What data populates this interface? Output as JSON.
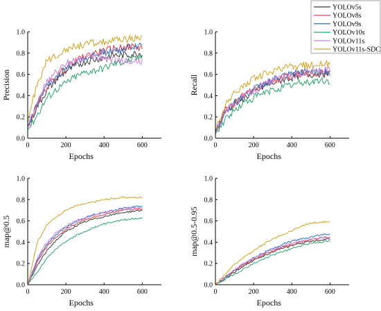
{
  "legend": {
    "placement": "top-right",
    "entries": [
      {
        "name": "YOLOv5s",
        "color": "#3a3a3a"
      },
      {
        "name": "YOLOv8s",
        "color": "#e8393b"
      },
      {
        "name": "YOLOv9s",
        "color": "#2f6fc4"
      },
      {
        "name": "YOLOv10s",
        "color": "#2ca36b"
      },
      {
        "name": "YOLOv11s",
        "color": "#c77ddb"
      },
      {
        "name": "YOLOv11s-SDC",
        "color": "#cfa11c"
      }
    ]
  },
  "chart_data": [
    {
      "type": "line",
      "ylabel": "Precision",
      "xlabel": "Epochs",
      "xlim": [
        0,
        700
      ],
      "ylim": [
        0,
        1.0
      ],
      "xticks": [
        "0",
        "200",
        "400",
        "600"
      ],
      "yticks": [
        "0.0",
        "0.2",
        "0.4",
        "0.6",
        "0.8",
        "1.0"
      ],
      "grid": false,
      "x": [
        0,
        50,
        100,
        150,
        200,
        250,
        300,
        350,
        400,
        450,
        500,
        550,
        600
      ],
      "series": [
        {
          "name": "YOLOv5s",
          "values": [
            0.1,
            0.3,
            0.45,
            0.55,
            0.63,
            0.68,
            0.72,
            0.74,
            0.76,
            0.78,
            0.78,
            0.79,
            0.8
          ]
        },
        {
          "name": "YOLOv8s",
          "values": [
            0.1,
            0.32,
            0.48,
            0.58,
            0.66,
            0.72,
            0.77,
            0.8,
            0.82,
            0.84,
            0.85,
            0.86,
            0.85
          ]
        },
        {
          "name": "YOLOv9s",
          "values": [
            0.1,
            0.33,
            0.48,
            0.58,
            0.65,
            0.72,
            0.75,
            0.78,
            0.81,
            0.82,
            0.84,
            0.86,
            0.88
          ]
        },
        {
          "name": "YOLOv10s",
          "values": [
            0.08,
            0.22,
            0.38,
            0.46,
            0.52,
            0.58,
            0.62,
            0.64,
            0.66,
            0.7,
            0.72,
            0.74,
            0.77
          ]
        },
        {
          "name": "YOLOv11s",
          "values": [
            0.1,
            0.35,
            0.52,
            0.62,
            0.7,
            0.74,
            0.76,
            0.76,
            0.75,
            0.74,
            0.73,
            0.72,
            0.73
          ]
        },
        {
          "name": "YOLOv11s-SDC",
          "values": [
            0.15,
            0.52,
            0.72,
            0.78,
            0.84,
            0.86,
            0.88,
            0.9,
            0.9,
            0.91,
            0.93,
            0.94,
            0.94
          ]
        }
      ]
    },
    {
      "type": "line",
      "ylabel": "Recall",
      "xlabel": "Epochs",
      "xlim": [
        0,
        700
      ],
      "ylim": [
        0,
        1.0
      ],
      "xticks": [
        "0",
        "200",
        "400",
        "600"
      ],
      "yticks": [
        "0.0",
        "0.2",
        "0.4",
        "0.6",
        "0.8",
        "1.0"
      ],
      "grid": false,
      "x": [
        0,
        50,
        100,
        150,
        200,
        250,
        300,
        350,
        400,
        450,
        500,
        550,
        600
      ],
      "series": [
        {
          "name": "YOLOv5s",
          "values": [
            0.05,
            0.25,
            0.32,
            0.38,
            0.43,
            0.48,
            0.52,
            0.55,
            0.57,
            0.59,
            0.6,
            0.61,
            0.6
          ]
        },
        {
          "name": "YOLOv8s",
          "values": [
            0.05,
            0.26,
            0.33,
            0.4,
            0.45,
            0.5,
            0.54,
            0.57,
            0.59,
            0.61,
            0.62,
            0.62,
            0.61
          ]
        },
        {
          "name": "YOLOv9s",
          "values": [
            0.05,
            0.25,
            0.33,
            0.4,
            0.46,
            0.51,
            0.55,
            0.58,
            0.6,
            0.62,
            0.63,
            0.63,
            0.62
          ]
        },
        {
          "name": "YOLOv10s",
          "values": [
            0.04,
            0.18,
            0.26,
            0.33,
            0.38,
            0.42,
            0.45,
            0.48,
            0.5,
            0.52,
            0.53,
            0.54,
            0.53
          ]
        },
        {
          "name": "YOLOv11s",
          "values": [
            0.05,
            0.25,
            0.33,
            0.4,
            0.45,
            0.5,
            0.54,
            0.57,
            0.59,
            0.61,
            0.63,
            0.64,
            0.64
          ]
        },
        {
          "name": "YOLOv11s-SDC",
          "values": [
            0.08,
            0.3,
            0.42,
            0.5,
            0.56,
            0.6,
            0.63,
            0.65,
            0.67,
            0.68,
            0.69,
            0.7,
            0.7
          ]
        }
      ]
    },
    {
      "type": "line",
      "ylabel": "map@0.5",
      "xlabel": "Epochs",
      "xlim": [
        0,
        700
      ],
      "ylim": [
        0,
        1.0
      ],
      "xticks": [
        "0",
        "200",
        "400",
        "600"
      ],
      "yticks": [
        "0.0",
        "0.2",
        "0.4",
        "0.6",
        "0.8",
        "1.0"
      ],
      "grid": false,
      "x": [
        0,
        50,
        100,
        150,
        200,
        250,
        300,
        350,
        400,
        450,
        500,
        550,
        600
      ],
      "series": [
        {
          "name": "YOLOv5s",
          "values": [
            0.0,
            0.18,
            0.32,
            0.42,
            0.5,
            0.55,
            0.59,
            0.62,
            0.64,
            0.66,
            0.68,
            0.69,
            0.7
          ]
        },
        {
          "name": "YOLOv8s",
          "values": [
            0.0,
            0.22,
            0.36,
            0.45,
            0.52,
            0.57,
            0.61,
            0.64,
            0.66,
            0.68,
            0.7,
            0.71,
            0.71
          ]
        },
        {
          "name": "YOLOv9s",
          "values": [
            0.0,
            0.23,
            0.38,
            0.47,
            0.54,
            0.59,
            0.63,
            0.66,
            0.68,
            0.7,
            0.72,
            0.73,
            0.74
          ]
        },
        {
          "name": "YOLOv10s",
          "values": [
            0.0,
            0.12,
            0.25,
            0.34,
            0.41,
            0.46,
            0.5,
            0.54,
            0.57,
            0.59,
            0.61,
            0.62,
            0.63
          ]
        },
        {
          "name": "YOLOv11s",
          "values": [
            0.0,
            0.25,
            0.4,
            0.49,
            0.55,
            0.6,
            0.63,
            0.66,
            0.68,
            0.7,
            0.71,
            0.72,
            0.72
          ]
        },
        {
          "name": "YOLOv11s-SDC",
          "values": [
            0.0,
            0.4,
            0.56,
            0.64,
            0.7,
            0.74,
            0.76,
            0.78,
            0.8,
            0.81,
            0.82,
            0.82,
            0.82
          ]
        }
      ]
    },
    {
      "type": "line",
      "ylabel": "map@0.5-0.95",
      "xlabel": "Epochs",
      "xlim": [
        0,
        700
      ],
      "ylim": [
        0,
        1.0
      ],
      "xticks": [
        "0",
        "200",
        "400",
        "600"
      ],
      "yticks": [
        "0.0",
        "0.2",
        "0.4",
        "0.6",
        "0.8",
        "1.0"
      ],
      "grid": false,
      "x": [
        0,
        50,
        100,
        150,
        200,
        250,
        300,
        350,
        400,
        450,
        500,
        550,
        600
      ],
      "series": [
        {
          "name": "YOLOv5s",
          "values": [
            0.0,
            0.06,
            0.12,
            0.18,
            0.23,
            0.27,
            0.31,
            0.34,
            0.37,
            0.39,
            0.41,
            0.42,
            0.43
          ]
        },
        {
          "name": "YOLOv8s",
          "values": [
            0.0,
            0.07,
            0.13,
            0.19,
            0.24,
            0.28,
            0.32,
            0.35,
            0.38,
            0.4,
            0.42,
            0.44,
            0.45
          ]
        },
        {
          "name": "YOLOv9s",
          "values": [
            0.0,
            0.07,
            0.14,
            0.2,
            0.25,
            0.3,
            0.34,
            0.38,
            0.41,
            0.43,
            0.45,
            0.47,
            0.48
          ]
        },
        {
          "name": "YOLOv10s",
          "values": [
            0.0,
            0.05,
            0.1,
            0.15,
            0.2,
            0.24,
            0.28,
            0.31,
            0.34,
            0.37,
            0.39,
            0.4,
            0.41
          ]
        },
        {
          "name": "YOLOv11s",
          "values": [
            0.0,
            0.07,
            0.14,
            0.2,
            0.25,
            0.29,
            0.33,
            0.36,
            0.39,
            0.41,
            0.43,
            0.44,
            0.44
          ]
        },
        {
          "name": "YOLOv11s-SDC",
          "values": [
            0.0,
            0.1,
            0.19,
            0.26,
            0.32,
            0.38,
            0.43,
            0.47,
            0.51,
            0.55,
            0.58,
            0.59,
            0.59
          ]
        }
      ]
    }
  ]
}
